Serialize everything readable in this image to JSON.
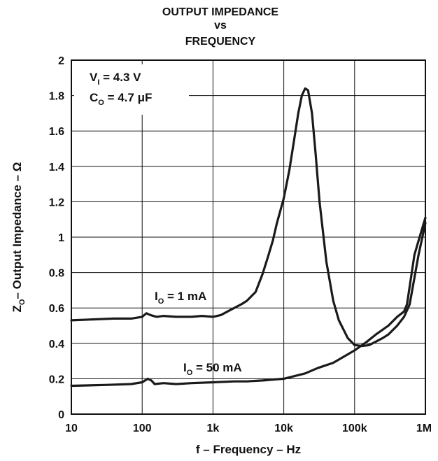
{
  "chart_data": {
    "type": "line",
    "title_lines": [
      "OUTPUT IMPEDANCE",
      "vs",
      "FREQUENCY"
    ],
    "xlabel": "f – Frequency – Hz",
    "ylabel": {
      "main": "Z",
      "sub": "O",
      "rest": "– Output Impedance – Ω"
    },
    "x_scale": "log",
    "xlim": [
      10,
      1000000
    ],
    "ylim": [
      0,
      2
    ],
    "x_ticks": [
      {
        "value": 10,
        "label": "10"
      },
      {
        "value": 100,
        "label": "100"
      },
      {
        "value": 1000,
        "label": "1k"
      },
      {
        "value": 10000,
        "label": "10k"
      },
      {
        "value": 100000,
        "label": "100k"
      },
      {
        "value": 1000000,
        "label": "1M"
      }
    ],
    "y_ticks": [
      {
        "value": 0,
        "label": "0"
      },
      {
        "value": 0.2,
        "label": "0.2"
      },
      {
        "value": 0.4,
        "label": "0.4"
      },
      {
        "value": 0.6,
        "label": "0.6"
      },
      {
        "value": 0.8,
        "label": "0.8"
      },
      {
        "value": 1,
        "label": "1"
      },
      {
        "value": 1.2,
        "label": "1.2"
      },
      {
        "value": 1.4,
        "label": "1.4"
      },
      {
        "value": 1.6,
        "label": "1.6"
      },
      {
        "value": 1.8,
        "label": "1.8"
      },
      {
        "value": 2,
        "label": "2"
      }
    ],
    "grid": true,
    "conditions": [
      {
        "main": "V",
        "sub": "I",
        "rest": " = 4.3 V"
      },
      {
        "main": "C",
        "sub": "O",
        "rest": " = 4.7 μF"
      }
    ],
    "series": [
      {
        "name": "I_O = 1 mA",
        "label": {
          "main": "I",
          "sub": "O",
          "rest": " = 1 mA"
        },
        "x": [
          10,
          20,
          40,
          70,
          100,
          115,
          130,
          160,
          200,
          300,
          500,
          700,
          1000,
          1300,
          1600,
          2000,
          2500,
          3000,
          4000,
          5000,
          6000,
          7000,
          8000,
          10000,
          12000,
          14000,
          16000,
          18000,
          20000,
          22000,
          25000,
          28000,
          32000,
          40000,
          50000,
          60000,
          80000,
          100000,
          130000,
          160000,
          200000,
          250000,
          300000,
          400000,
          500000,
          600000,
          800000,
          1000000
        ],
        "y": [
          0.53,
          0.535,
          0.54,
          0.54,
          0.55,
          0.57,
          0.56,
          0.55,
          0.555,
          0.55,
          0.55,
          0.555,
          0.55,
          0.56,
          0.58,
          0.6,
          0.62,
          0.64,
          0.69,
          0.79,
          0.89,
          0.98,
          1.08,
          1.22,
          1.38,
          1.55,
          1.7,
          1.8,
          1.84,
          1.83,
          1.7,
          1.48,
          1.2,
          0.86,
          0.64,
          0.53,
          0.43,
          0.39,
          0.385,
          0.39,
          0.41,
          0.43,
          0.45,
          0.5,
          0.55,
          0.62,
          0.9,
          1.08
        ]
      },
      {
        "name": "I_O = 50 mA",
        "label": {
          "main": "I",
          "sub": "O",
          "rest": " = 50 mA"
        },
        "x": [
          10,
          30,
          70,
          100,
          120,
          135,
          150,
          200,
          300,
          500,
          1000,
          2000,
          3000,
          5000,
          10000,
          20000,
          30000,
          50000,
          100000,
          150000,
          200000,
          300000,
          400000,
          500000,
          550000,
          600000,
          700000,
          800000,
          1000000
        ],
        "y": [
          0.16,
          0.165,
          0.17,
          0.18,
          0.2,
          0.19,
          0.17,
          0.175,
          0.17,
          0.175,
          0.18,
          0.185,
          0.185,
          0.19,
          0.2,
          0.23,
          0.26,
          0.29,
          0.36,
          0.41,
          0.45,
          0.5,
          0.55,
          0.58,
          0.62,
          0.72,
          0.9,
          0.98,
          1.11
        ]
      }
    ]
  }
}
